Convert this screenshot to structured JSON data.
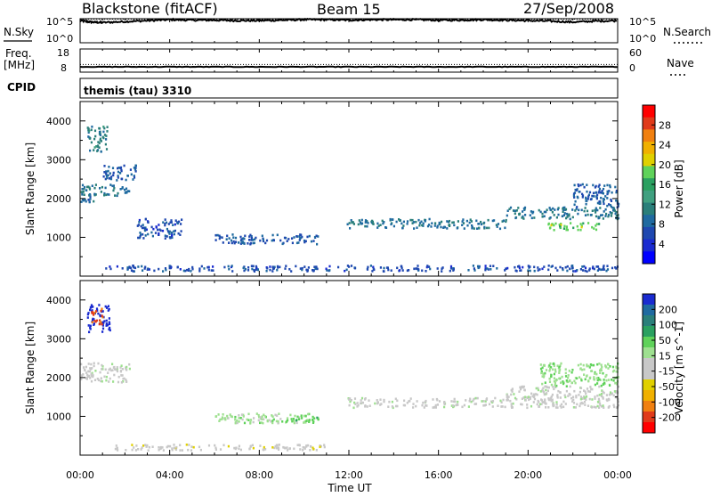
{
  "header": {
    "station": "Blackstone (fitACF)",
    "beam": "Beam 15",
    "date": "27/Sep/2008"
  },
  "side_labels": {
    "nsky": "N.Sky",
    "freq_line1": "Freq.",
    "freq_line2": "[MHz]",
    "cpid": "CPID",
    "nsearch": "N.Search",
    "nave": "Nave"
  },
  "cpid_text": "themis (tau) 3310",
  "axes": {
    "xlabel": "Time UT",
    "xticks": [
      "00:00",
      "04:00",
      "08:00",
      "12:00",
      "16:00",
      "20:00",
      "00:00"
    ],
    "ylabel": "Slant Range [km]",
    "yticks": [
      "1000",
      "2000",
      "3000",
      "4000"
    ],
    "noise_left_ticks": [
      "10^5",
      "10^0"
    ],
    "noise_right_ticks": [
      "10^5",
      "10^0"
    ],
    "freq_left_ticks": [
      "18",
      "8"
    ],
    "freq_right_ticks": [
      "60",
      "0"
    ]
  },
  "colorbars": {
    "power": {
      "label": "Power [dB]",
      "ticks": [
        "28",
        "24",
        "20",
        "16",
        "12",
        "8",
        "4"
      ],
      "colors": [
        "#ff0000",
        "#e03a1a",
        "#f08010",
        "#f0b000",
        "#e0d000",
        "#5fd25a",
        "#2aa060",
        "#40a080",
        "#2a7f7a",
        "#1f6aa0",
        "#1f48b0",
        "#1a2bd0",
        "#0000ff"
      ]
    },
    "velocity": {
      "label": "Velocity [m s^-1]",
      "ticks": [
        "200",
        "100",
        "50",
        "15",
        "-15",
        "-50",
        "-100",
        "-200"
      ],
      "colors": [
        "#1a2bd0",
        "#1f6aa0",
        "#2a7f7a",
        "#2aa060",
        "#5fd25a",
        "#9ee090",
        "#c8c8c8",
        "#c8c8c8",
        "#e0d000",
        "#f0b000",
        "#f08010",
        "#e03a1a",
        "#ff0000"
      ]
    }
  },
  "chart_data": [
    {
      "type": "line",
      "title": "N.Sky / N.Search",
      "xlabel": "Time UT",
      "xlim": [
        0,
        24
      ],
      "ylim_log10": [
        0,
        5
      ],
      "series": [
        {
          "name": "N.Sky",
          "x": [
            0,
            0.5,
            1,
            2,
            3,
            4,
            5,
            6,
            7,
            8,
            9,
            10,
            11,
            12,
            13,
            14,
            15,
            16,
            17,
            18,
            19,
            20,
            21,
            22,
            23,
            24
          ],
          "y_log10": [
            4.6,
            4.3,
            4.2,
            4.4,
            4.6,
            4.8,
            4.7,
            4.7,
            4.6,
            4.6,
            4.7,
            4.8,
            4.8,
            4.7,
            4.8,
            4.8,
            4.8,
            4.7,
            4.7,
            4.8,
            4.7,
            4.6,
            4.5,
            4.3,
            4.5,
            4.6
          ]
        },
        {
          "name": "N.Search",
          "x": [
            0,
            12,
            24
          ],
          "y_log10": [
            4.9,
            4.9,
            4.9
          ]
        }
      ]
    },
    {
      "type": "line",
      "title": "Freq / Nave",
      "xlabel": "Time UT",
      "xlim": [
        0,
        24
      ],
      "ylim": [
        8,
        18
      ],
      "series": [
        {
          "name": "Freq.",
          "x": [
            0,
            6,
            12,
            18,
            24
          ],
          "y": [
            10.3,
            10.3,
            10.3,
            10.3,
            10.3
          ]
        },
        {
          "name": "Nave",
          "x": [
            0,
            6,
            12,
            18,
            24
          ],
          "y": [
            20,
            20,
            20,
            20,
            20
          ]
        }
      ]
    },
    {
      "type": "heatmap",
      "title": "Power [dB]",
      "xlabel": "Time UT",
      "ylabel": "Slant Range [km]",
      "xlim": [
        0,
        24
      ],
      "ylim": [
        0,
        4500
      ],
      "clim": [
        0,
        30
      ],
      "regions": [
        {
          "t": [
            0.0,
            0.7
          ],
          "r": [
            1900,
            2100
          ],
          "v": 8
        },
        {
          "t": [
            0.0,
            2.2
          ],
          "r": [
            2100,
            2400
          ],
          "v": 9
        },
        {
          "t": [
            0.3,
            1.2
          ],
          "r": [
            3200,
            3900
          ],
          "v": 10
        },
        {
          "t": [
            1.0,
            2.5
          ],
          "r": [
            2500,
            2900
          ],
          "v": 7
        },
        {
          "t": [
            2.5,
            4.5
          ],
          "r": [
            1000,
            1500
          ],
          "v": 6
        },
        {
          "t": [
            6.0,
            10.6
          ],
          "r": [
            850,
            1100
          ],
          "v": 7
        },
        {
          "t": [
            11.9,
            19.0
          ],
          "r": [
            1250,
            1500
          ],
          "v": 9
        },
        {
          "t": [
            19.0,
            24.0
          ],
          "r": [
            1500,
            1800
          ],
          "v": 9
        },
        {
          "t": [
            20.8,
            23.2
          ],
          "r": [
            1200,
            1400
          ],
          "v": 17
        },
        {
          "t": [
            22.0,
            24.0
          ],
          "r": [
            1800,
            2400
          ],
          "v": 7
        },
        {
          "t": [
            1.0,
            24.0
          ],
          "r": [
            150,
            300
          ],
          "v": 6
        }
      ]
    },
    {
      "type": "heatmap",
      "title": "Velocity [m s^-1]",
      "xlabel": "Time UT",
      "ylabel": "Slant Range [km]",
      "xlim": [
        0,
        24
      ],
      "ylim": [
        0,
        4500
      ],
      "clim": [
        -200,
        200
      ],
      "regions": [
        {
          "t": [
            0.0,
            2.2
          ],
          "r": [
            1900,
            2400
          ],
          "v": 0
        },
        {
          "t": [
            0.3,
            1.3
          ],
          "r": [
            3200,
            3900
          ],
          "v": 200
        },
        {
          "t": [
            0.4,
            1.0
          ],
          "r": [
            3400,
            3800
          ],
          "v": -150
        },
        {
          "t": [
            6.0,
            10.6
          ],
          "r": [
            850,
            1100
          ],
          "v": 30
        },
        {
          "t": [
            9.0,
            10.6
          ],
          "r": [
            850,
            1050
          ],
          "v": 60
        },
        {
          "t": [
            11.9,
            24.0
          ],
          "r": [
            1250,
            1500
          ],
          "v": 0
        },
        {
          "t": [
            19.0,
            24.0
          ],
          "r": [
            1500,
            1800
          ],
          "v": 0
        },
        {
          "t": [
            1.5,
            11.0
          ],
          "r": [
            150,
            300
          ],
          "v": -30
        },
        {
          "t": [
            20.5,
            24.0
          ],
          "r": [
            1800,
            2400
          ],
          "v": 40
        }
      ]
    }
  ]
}
